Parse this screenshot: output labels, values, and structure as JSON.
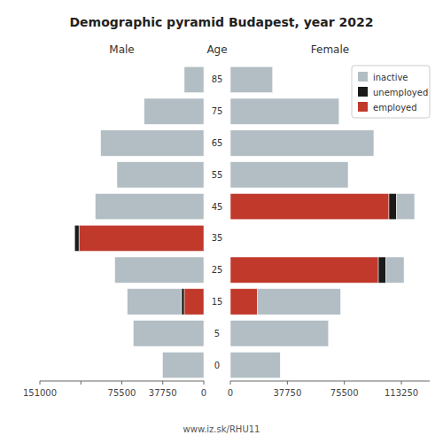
{
  "chart_data": {
    "type": "bar",
    "orientation": "horizontal",
    "stacked": true,
    "title": "Demographic pyramid Budapest, year 2022",
    "annotations": [
      "www.iz.sk/RHU11"
    ],
    "y_label": "Age",
    "categories": [
      0,
      5,
      15,
      25,
      35,
      45,
      55,
      65,
      75,
      85
    ],
    "legend": "upper right",
    "panels": [
      {
        "title": "Male",
        "xlim": [
          151000,
          0
        ],
        "xticks": [
          151000,
          {
            "value": 113250,
            "label": null
          },
          75500,
          37750,
          0
        ],
        "series": [
          {
            "name": "employed",
            "color": "#c0392b",
            "values": [
              0,
              0,
              18000,
              0,
              115000,
              0,
              0,
              0,
              0,
              0
            ]
          },
          {
            "name": "unemployed",
            "color": "#1a1a1a",
            "values": [
              0,
              0,
              2500,
              0,
              4000,
              0,
              0,
              0,
              0,
              0
            ]
          },
          {
            "name": "inactive",
            "color": "#b2bec3",
            "values": [
              38000,
              65000,
              50000,
              82000,
              0,
              100000,
              80000,
              95000,
              55000,
              18000
            ]
          }
        ]
      },
      {
        "title": "Female",
        "xlim": [
          0,
          132000
        ],
        "xticks": [
          0,
          37750,
          75500,
          113250
        ],
        "series": [
          {
            "name": "employed",
            "color": "#c0392b",
            "values": [
              0,
              0,
              18000,
              98000,
              0,
              105000,
              0,
              0,
              0,
              0
            ]
          },
          {
            "name": "unemployed",
            "color": "#1a1a1a",
            "values": [
              0,
              0,
              0,
              5000,
              0,
              5000,
              0,
              0,
              0,
              0
            ]
          },
          {
            "name": "inactive",
            "color": "#b2bec3",
            "values": [
              33000,
              65000,
              55000,
              12000,
              0,
              12000,
              78000,
              95000,
              72000,
              28000
            ]
          }
        ]
      }
    ]
  }
}
